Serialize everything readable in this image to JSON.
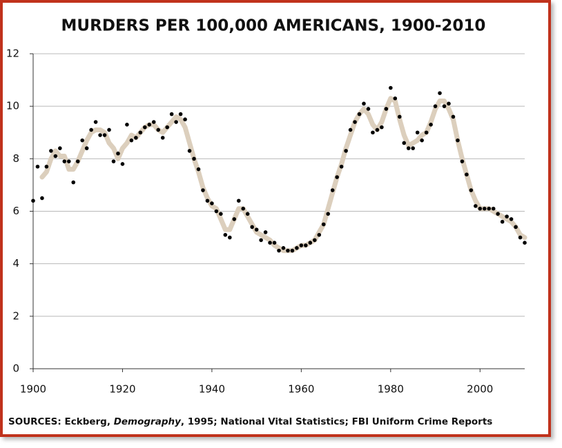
{
  "chart_data": {
    "type": "scatter",
    "title": "MURDERS PER 100,000 AMERICANS, 1900-2010",
    "source": [
      "SOURCES: Eckberg, ",
      "Demography",
      ", 1995; National Vital Statistics; FBI Uniform Crime Reports"
    ],
    "x": [
      1900,
      1901,
      1902,
      1903,
      1904,
      1905,
      1906,
      1907,
      1908,
      1909,
      1910,
      1911,
      1912,
      1913,
      1914,
      1915,
      1916,
      1917,
      1918,
      1919,
      1920,
      1921,
      1922,
      1923,
      1924,
      1925,
      1926,
      1927,
      1928,
      1929,
      1930,
      1931,
      1932,
      1933,
      1934,
      1935,
      1936,
      1937,
      1938,
      1939,
      1940,
      1941,
      1942,
      1943,
      1944,
      1945,
      1946,
      1947,
      1948,
      1949,
      1950,
      1951,
      1952,
      1953,
      1954,
      1955,
      1956,
      1957,
      1958,
      1959,
      1960,
      1961,
      1962,
      1963,
      1964,
      1965,
      1966,
      1967,
      1968,
      1969,
      1970,
      1971,
      1972,
      1973,
      1974,
      1975,
      1976,
      1977,
      1978,
      1979,
      1980,
      1981,
      1982,
      1983,
      1984,
      1985,
      1986,
      1987,
      1988,
      1989,
      1990,
      1991,
      1992,
      1993,
      1994,
      1995,
      1996,
      1997,
      1998,
      1999,
      2000,
      2001,
      2002,
      2003,
      2004,
      2005,
      2006,
      2007,
      2008,
      2009,
      2010
    ],
    "series": [
      {
        "color": "#000000",
        "values": [
          6.4,
          7.7,
          6.5,
          7.7,
          8.3,
          8.1,
          8.4,
          7.9,
          7.9,
          7.1,
          7.9,
          8.7,
          8.4,
          9.1,
          9.4,
          8.9,
          8.9,
          9.1,
          7.9,
          8.2,
          7.8,
          9.3,
          8.7,
          8.8,
          9.0,
          9.2,
          9.3,
          9.4,
          9.1,
          8.8,
          9.2,
          9.7,
          9.4,
          9.7,
          9.5,
          8.3,
          8.0,
          7.6,
          6.8,
          6.4,
          6.3,
          6.0,
          5.9,
          5.1,
          5.0,
          5.7,
          6.4,
          6.1,
          5.9,
          5.4,
          5.3,
          4.9,
          5.2,
          4.8,
          4.8,
          4.5,
          4.6,
          4.5,
          4.5,
          4.6,
          4.7,
          4.7,
          4.8,
          4.9,
          5.1,
          5.5,
          5.9,
          6.8,
          7.3,
          7.7,
          8.3,
          9.1,
          9.4,
          9.7,
          10.1,
          9.9,
          9.0,
          9.1,
          9.2,
          9.9,
          10.7,
          10.3,
          9.6,
          8.6,
          8.4,
          8.4,
          9.0,
          8.7,
          9.0,
          9.3,
          10.0,
          10.5,
          10.0,
          10.1,
          9.6,
          8.7,
          7.9,
          7.4,
          6.8,
          6.2,
          6.1,
          6.1,
          6.1,
          6.1,
          5.9,
          5.6,
          5.8,
          5.7,
          5.4,
          5.0,
          4.8
        ]
      },
      {
        "color": "#dccfbd",
        "values": [
          null,
          null,
          7.3,
          7.5,
          8.0,
          8.3,
          8.1,
          8.1,
          7.6,
          7.6,
          7.9,
          8.3,
          8.7,
          9.0,
          9.1,
          9.1,
          9.0,
          8.6,
          8.4,
          8.0,
          8.4,
          8.6,
          8.9,
          8.8,
          9.0,
          9.2,
          9.3,
          9.3,
          9.1,
          9.0,
          9.2,
          9.4,
          9.6,
          9.5,
          9.2,
          8.6,
          8.0,
          7.5,
          6.9,
          6.5,
          6.2,
          6.1,
          5.7,
          5.3,
          5.3,
          5.7,
          6.1,
          6.1,
          5.8,
          5.5,
          5.2,
          5.1,
          5.0,
          4.9,
          4.7,
          4.6,
          4.5,
          4.5,
          4.5,
          4.6,
          4.7,
          4.7,
          4.8,
          4.9,
          5.2,
          5.5,
          6.1,
          6.7,
          7.3,
          7.8,
          8.4,
          8.9,
          9.4,
          9.7,
          9.9,
          9.7,
          9.3,
          9.1,
          9.4,
          9.9,
          10.3,
          10.2,
          9.5,
          8.9,
          8.5,
          8.6,
          8.7,
          8.9,
          9.0,
          9.4,
          9.9,
          10.2,
          10.2,
          9.9,
          9.5,
          8.7,
          8.0,
          7.4,
          6.8,
          6.4,
          6.1,
          6.1,
          6.1,
          6.0,
          5.9,
          5.8,
          5.7,
          5.6,
          5.4,
          5.1,
          5.0
        ]
      }
    ],
    "xlim": [
      1900,
      2010
    ],
    "xticks": [
      1900,
      1920,
      1940,
      1960,
      1980,
      2000
    ],
    "ylim": [
      0,
      12
    ],
    "yticks": [
      0,
      2,
      4,
      6,
      8,
      10,
      12
    ],
    "grid": true
  }
}
